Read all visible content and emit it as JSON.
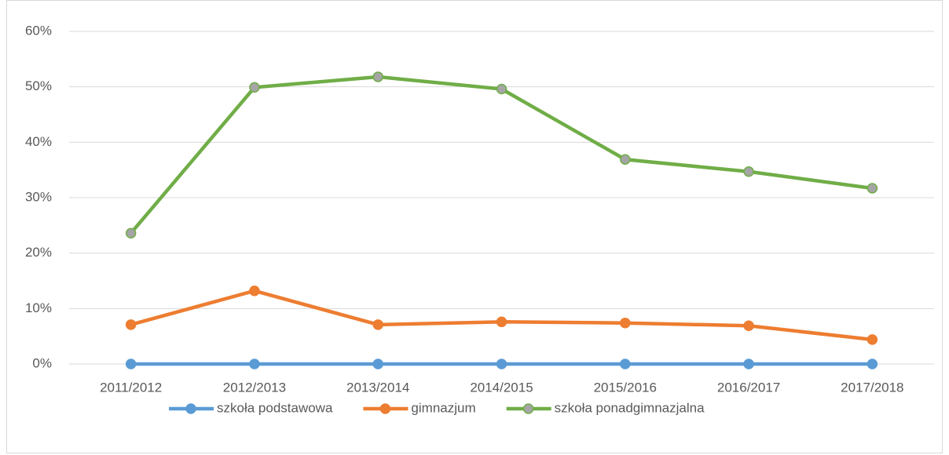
{
  "chart_data": {
    "type": "line",
    "categories": [
      "2011/2012",
      "2012/2013",
      "2013/2014",
      "2014/2015",
      "2015/2016",
      "2016/2017",
      "2017/2018"
    ],
    "series": [
      {
        "name": "szkoła podstawowa",
        "color": "#5b9bd5",
        "values": [
          0,
          0,
          0,
          0,
          0,
          0,
          0
        ]
      },
      {
        "name": "gimnazjum",
        "color": "#ed7d31",
        "values": [
          7.1,
          13.2,
          7.1,
          7.6,
          7.4,
          6.9,
          4.4
        ]
      },
      {
        "name": "szkoła ponadgimnazjalna",
        "color": "#70ad47",
        "marker_fill": "#a5a5a5",
        "values": [
          23.6,
          49.9,
          51.8,
          49.6,
          36.9,
          34.7,
          31.7
        ]
      }
    ],
    "ylim": [
      0,
      60
    ],
    "yticks": [
      {
        "value": 0,
        "label": "0%"
      },
      {
        "value": 10,
        "label": "10%"
      },
      {
        "value": 20,
        "label": "20%"
      },
      {
        "value": 30,
        "label": "30%"
      },
      {
        "value": 40,
        "label": "40%"
      },
      {
        "value": 50,
        "label": "50%"
      },
      {
        "value": 60,
        "label": "60%"
      }
    ],
    "grid": true,
    "legend": "bottom"
  }
}
